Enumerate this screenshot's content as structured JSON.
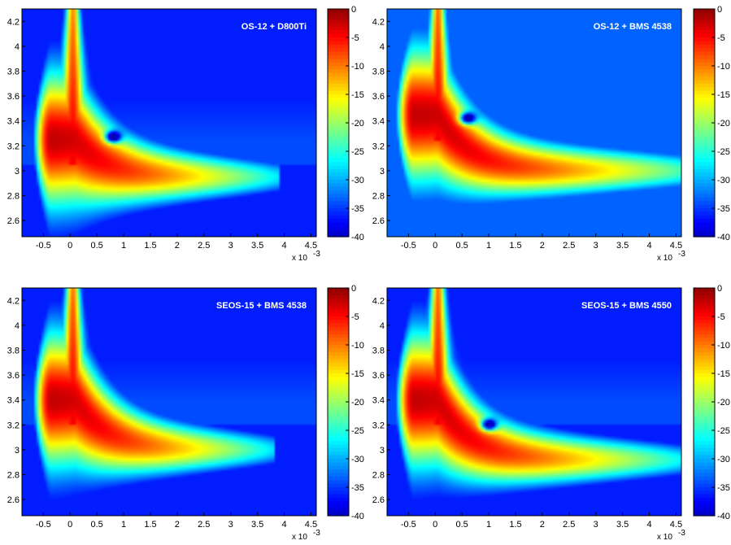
{
  "chart_data": [
    {
      "type": "heatmap",
      "title": "OS-12 + D800Ti",
      "x_multiplier": "x 10",
      "x_multiplier_exp": "-3",
      "xlim": [
        -0.9,
        4.6
      ],
      "ylim": [
        2.47,
        4.3
      ],
      "xticks": [
        -0.5,
        0,
        0.5,
        1,
        1.5,
        2,
        2.5,
        3,
        3.5,
        4,
        4.5
      ],
      "xtick_labels": [
        "-0.5",
        "0",
        "0.5",
        "1",
        "1.5",
        "2",
        "2.5",
        "3",
        "3.5",
        "4",
        "4.5"
      ],
      "yticks": [
        2.6,
        2.8,
        3,
        3.2,
        3.4,
        3.6,
        3.8,
        4,
        4.2
      ],
      "ytick_labels": [
        "2.6",
        "2.8",
        "3",
        "3.2",
        "3.4",
        "3.6",
        "3.8",
        "4",
        "4.2"
      ],
      "colorbar": {
        "range": [
          -40,
          0
        ],
        "ticks": [
          0,
          -5,
          -10,
          -15,
          -20,
          -25,
          -30,
          -35,
          -40
        ],
        "tick_labels": [
          "0",
          "-5",
          "-10",
          "-15",
          "-20",
          "-25",
          "-30",
          "-35",
          "-40"
        ]
      },
      "features": {
        "peak": [
          0.1,
          3.25
        ],
        "ridge_end_x": 3.3,
        "ridge_y": 2.95,
        "hole": [
          0.8,
          3.27
        ],
        "background_db": -36
      }
    },
    {
      "type": "heatmap",
      "title": "OS-12 + BMS 4538",
      "x_multiplier": "x 10",
      "x_multiplier_exp": "-3",
      "xlim": [
        -0.9,
        4.6
      ],
      "ylim": [
        2.47,
        4.3
      ],
      "xticks": [
        -0.5,
        0,
        0.5,
        1,
        1.5,
        2,
        2.5,
        3,
        3.5,
        4,
        4.5
      ],
      "xtick_labels": [
        "-0.5",
        "0",
        "0.5",
        "1",
        "1.5",
        "2",
        "2.5",
        "3",
        "3.5",
        "4",
        "4.5"
      ],
      "yticks": [
        2.6,
        2.8,
        3,
        3.2,
        3.4,
        3.6,
        3.8,
        4,
        4.2
      ],
      "ytick_labels": [
        "2.6",
        "2.8",
        "3",
        "3.2",
        "3.4",
        "3.6",
        "3.8",
        "4",
        "4.2"
      ],
      "colorbar": {
        "range": [
          -40,
          0
        ],
        "ticks": [
          0,
          -5,
          -10,
          -15,
          -20,
          -25,
          -30,
          -35,
          -40
        ],
        "tick_labels": [
          "0",
          "-5",
          "-10",
          "-15",
          "-20",
          "-25",
          "-30",
          "-35",
          "-40"
        ]
      },
      "features": {
        "peak": [
          0.05,
          3.45
        ],
        "ridge_end_x": 4.4,
        "ridge_y": 3.0,
        "hole": [
          0.6,
          3.42
        ],
        "background_db": -33
      }
    },
    {
      "type": "heatmap",
      "title": "SEOS-15 + BMS 4538",
      "x_multiplier": "x 10",
      "x_multiplier_exp": "-3",
      "xlim": [
        -0.9,
        4.6
      ],
      "ylim": [
        2.47,
        4.3
      ],
      "xticks": [
        -0.5,
        0,
        0.5,
        1,
        1.5,
        2,
        2.5,
        3,
        3.5,
        4,
        4.5
      ],
      "xtick_labels": [
        "-0.5",
        "0",
        "0.5",
        "1",
        "1.5",
        "2",
        "2.5",
        "3",
        "3.5",
        "4",
        "4.5"
      ],
      "yticks": [
        2.6,
        2.8,
        3,
        3.2,
        3.4,
        3.6,
        3.8,
        4,
        4.2
      ],
      "ytick_labels": [
        "2.6",
        "2.8",
        "3",
        "3.2",
        "3.4",
        "3.6",
        "3.8",
        "4",
        "4.2"
      ],
      "colorbar": {
        "range": [
          -40,
          0
        ],
        "ticks": [
          0,
          -5,
          -10,
          -15,
          -20,
          -25,
          -30,
          -35,
          -40
        ],
        "tick_labels": [
          "0",
          "-5",
          "-10",
          "-15",
          "-20",
          "-25",
          "-30",
          "-35",
          "-40"
        ]
      },
      "features": {
        "peak": [
          0.1,
          3.4
        ],
        "ridge_end_x": 3.2,
        "ridge_y": 3.0,
        "hole": null,
        "background_db": -36
      }
    },
    {
      "type": "heatmap",
      "title": "SEOS-15 + BMS 4550",
      "x_multiplier": "x 10",
      "x_multiplier_exp": "-3",
      "xlim": [
        -0.9,
        4.6
      ],
      "ylim": [
        2.47,
        4.3
      ],
      "xticks": [
        -0.5,
        0,
        0.5,
        1,
        1.5,
        2,
        2.5,
        3,
        3.5,
        4,
        4.5
      ],
      "xtick_labels": [
        "-0.5",
        "0",
        "0.5",
        "1",
        "1.5",
        "2",
        "2.5",
        "3",
        "3.5",
        "4",
        "4.5"
      ],
      "yticks": [
        2.6,
        2.8,
        3,
        3.2,
        3.4,
        3.6,
        3.8,
        4,
        4.2
      ],
      "ytick_labels": [
        "2.6",
        "2.8",
        "3",
        "3.2",
        "3.4",
        "3.6",
        "3.8",
        "4",
        "4.2"
      ],
      "colorbar": {
        "range": [
          -40,
          0
        ],
        "ticks": [
          0,
          -5,
          -10,
          -15,
          -20,
          -25,
          -30,
          -35,
          -40
        ],
        "tick_labels": [
          "0",
          "-5",
          "-10",
          "-15",
          "-20",
          "-25",
          "-30",
          "-35",
          "-40"
        ]
      },
      "features": {
        "peak": [
          0.05,
          3.4
        ],
        "ridge_end_x": 4.0,
        "ridge_y": 2.92,
        "hole": [
          1.0,
          3.2
        ],
        "background_db": -36
      }
    }
  ],
  "colormap": "jet",
  "colors": {
    "background": "#ffffff",
    "plot_background": "#1c1c84",
    "title_text": "#ffffff"
  }
}
